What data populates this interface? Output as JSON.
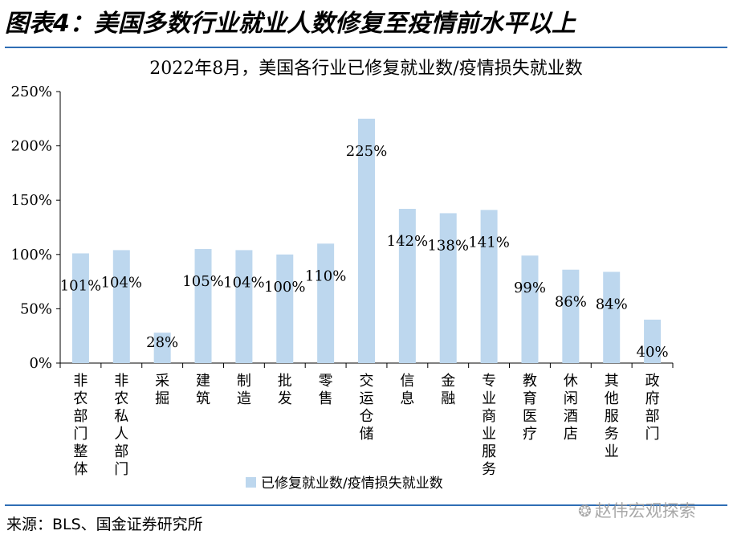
{
  "figure_title": "图表4：美国多数行业就业人数修复至疫情前水平以上",
  "source": "来源：BLS、国金证券研究所",
  "watermark": "赵伟宏观探索",
  "colors": {
    "bar": "#bdd7ee",
    "rule": "#2f6eb5",
    "axis": "#000000"
  },
  "chart_data": {
    "type": "bar",
    "title": "2022年8月，美国各行业已修复就业数/疫情损失就业数",
    "categories": [
      "非农部门整体",
      "非农私人部门",
      "采掘",
      "建筑",
      "制造",
      "批发",
      "零售",
      "交运仓储",
      "信息",
      "金融",
      "专业商业服务",
      "教育医疗",
      "休闲酒店",
      "其他服务业",
      "政府部门"
    ],
    "series": [
      {
        "name": "已修复就业数/疫情损失就业数",
        "values": [
          101,
          104,
          28,
          105,
          104,
          100,
          110,
          225,
          142,
          138,
          141,
          99,
          86,
          84,
          40
        ]
      }
    ],
    "data_labels": [
      "101%",
      "104%",
      "28%",
      "105%",
      "104%",
      "100%",
      "110%",
      "225%",
      "142%",
      "138%",
      "141%",
      "99%",
      "86%",
      "84%",
      "40%"
    ],
    "y_ticks": [
      "0%",
      "50%",
      "100%",
      "150%",
      "200%",
      "250%"
    ],
    "ylim": [
      0,
      250
    ],
    "grid": false,
    "legend_position": "bottom"
  }
}
